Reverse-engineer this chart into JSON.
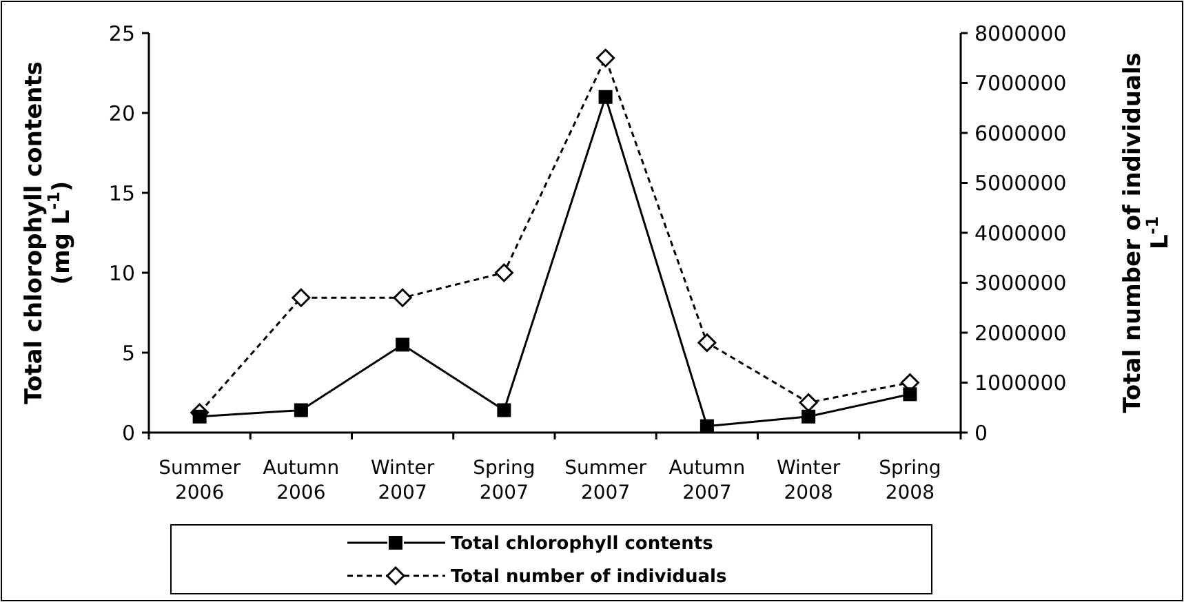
{
  "chart_data": {
    "type": "line",
    "ylabel": "Total chlorophyll contents (mg L$^{-1}$)",
    "y2label": "Total number of individuals L$^{-1}$",
    "categories": [
      "Summer 2006",
      "Autumn 2006",
      "Winter 2007",
      "Spring 2007",
      "Summer 2007",
      "Autumn 2007",
      "Winter 2008",
      "Spring 2008"
    ],
    "series": [
      {
        "name": "Total chlorophyll contents",
        "color": "#000000",
        "marker": "square",
        "line_style": "solid",
        "values": [
          1.0,
          1.4,
          5.5,
          1.4,
          21,
          0.4,
          1.0,
          2.4
        ]
      },
      {
        "name": "Total number of individuals",
        "color": "#000000",
        "marker": "diamond",
        "line_style": "dashed",
        "axis": "y2",
        "values": [
          400000,
          2700000,
          2700000,
          3200000,
          7500000,
          1800000,
          600000,
          1000000
        ]
      }
    ],
    "ylim": [
      0,
      25
    ],
    "yticks": [
      0,
      5,
      10,
      15,
      20,
      25
    ],
    "y2lim": [
      0,
      8000000
    ],
    "y2ticks": [
      0,
      1000000,
      2000000,
      3000000,
      4000000,
      5000000,
      6000000,
      7000000,
      8000000
    ],
    "grid": false,
    "legend": "bottom"
  }
}
